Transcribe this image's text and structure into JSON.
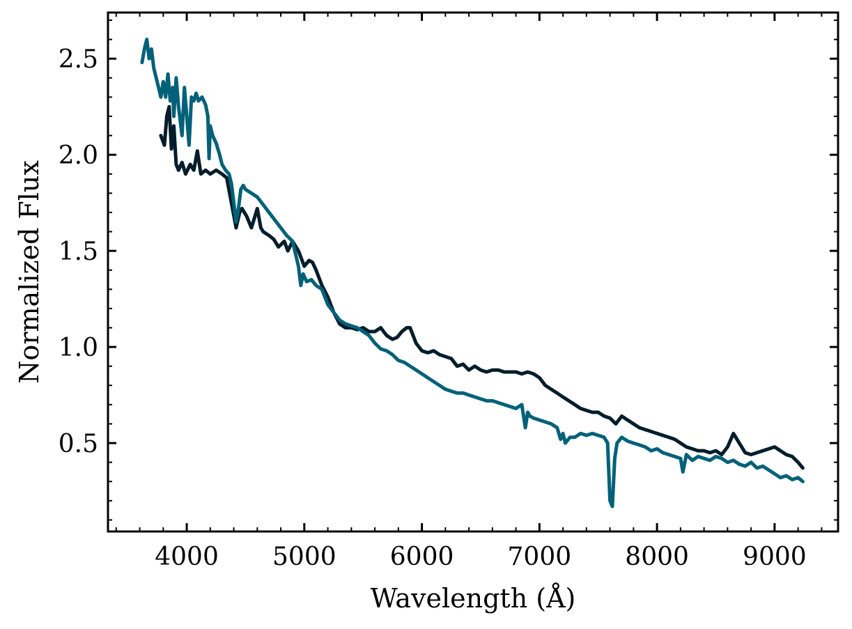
{
  "chart_data": {
    "type": "line",
    "title": "",
    "xlabel": "Wavelength (Å)",
    "ylabel": "Normalized Flux",
    "xlim": [
      3330,
      9540
    ],
    "ylim": [
      0.04,
      2.74
    ],
    "xticks": [
      4000,
      5000,
      6000,
      7000,
      8000,
      9000
    ],
    "xtick_labels": [
      "4000",
      "5000",
      "6000",
      "7000",
      "8000",
      "9000"
    ],
    "yticks": [
      0.5,
      1.0,
      1.5,
      2.0,
      2.5
    ],
    "ytick_labels": [
      "0.5",
      "1.0",
      "1.5",
      "2.0",
      "2.5"
    ],
    "x_minor_step": 200,
    "y_minor_step": 0.1,
    "grid": false,
    "legend": "none",
    "series": [
      {
        "color": "#031d2a",
        "x": [
          3780,
          3810,
          3830,
          3850,
          3870,
          3890,
          3910,
          3930,
          3960,
          3990,
          4030,
          4060,
          4090,
          4120,
          4160,
          4200,
          4250,
          4300,
          4340,
          4380,
          4420,
          4450,
          4470,
          4510,
          4550,
          4580,
          4600,
          4630,
          4650,
          4700,
          4740,
          4780,
          4830,
          4860,
          4900,
          4950,
          5000,
          5040,
          5070,
          5100,
          5150,
          5200,
          5250,
          5300,
          5350,
          5400,
          5450,
          5500,
          5550,
          5600,
          5650,
          5700,
          5750,
          5790,
          5830,
          5870,
          5900,
          5950,
          6000,
          6050,
          6100,
          6150,
          6200,
          6250,
          6300,
          6350,
          6400,
          6450,
          6500,
          6550,
          6600,
          6650,
          6700,
          6750,
          6800,
          6850,
          6900,
          6950,
          7000,
          7050,
          7100,
          7150,
          7200,
          7250,
          7300,
          7350,
          7400,
          7450,
          7500,
          7550,
          7600,
          7650,
          7700,
          7750,
          7800,
          7850,
          7900,
          7950,
          8000,
          8050,
          8100,
          8150,
          8200,
          8250,
          8300,
          8350,
          8400,
          8450,
          8500,
          8550,
          8600,
          8650,
          8700,
          8750,
          8800,
          8850,
          8900,
          8950,
          9000,
          9050,
          9100,
          9150,
          9200,
          9240
        ],
        "y": [
          2.1,
          2.05,
          2.2,
          2.25,
          2.03,
          2.15,
          1.95,
          1.92,
          1.96,
          1.9,
          1.95,
          1.92,
          2.02,
          1.9,
          1.92,
          1.9,
          1.92,
          1.9,
          1.88,
          1.75,
          1.62,
          1.7,
          1.72,
          1.68,
          1.62,
          1.68,
          1.72,
          1.62,
          1.6,
          1.58,
          1.56,
          1.52,
          1.55,
          1.5,
          1.55,
          1.5,
          1.42,
          1.45,
          1.44,
          1.4,
          1.32,
          1.26,
          1.18,
          1.12,
          1.1,
          1.1,
          1.09,
          1.1,
          1.08,
          1.08,
          1.1,
          1.06,
          1.04,
          1.05,
          1.08,
          1.1,
          1.1,
          1.02,
          0.98,
          0.97,
          0.98,
          0.96,
          0.95,
          0.94,
          0.9,
          0.91,
          0.88,
          0.9,
          0.88,
          0.87,
          0.88,
          0.88,
          0.87,
          0.87,
          0.87,
          0.86,
          0.87,
          0.86,
          0.84,
          0.8,
          0.78,
          0.76,
          0.74,
          0.72,
          0.7,
          0.68,
          0.67,
          0.66,
          0.66,
          0.64,
          0.63,
          0.6,
          0.64,
          0.62,
          0.6,
          0.58,
          0.57,
          0.56,
          0.55,
          0.54,
          0.53,
          0.52,
          0.5,
          0.48,
          0.47,
          0.46,
          0.46,
          0.45,
          0.46,
          0.44,
          0.48,
          0.55,
          0.5,
          0.45,
          0.44,
          0.45,
          0.46,
          0.47,
          0.48,
          0.46,
          0.44,
          0.43,
          0.4,
          0.37
        ]
      },
      {
        "color": "#006178",
        "x": [
          3620,
          3640,
          3660,
          3680,
          3700,
          3720,
          3740,
          3760,
          3780,
          3800,
          3820,
          3840,
          3860,
          3880,
          3890,
          3910,
          3930,
          3960,
          3980,
          4000,
          4020,
          4040,
          4060,
          4080,
          4100,
          4130,
          4160,
          4180,
          4190,
          4200,
          4220,
          4250,
          4280,
          4300,
          4330,
          4360,
          4380,
          4400,
          4420,
          4440,
          4460,
          4480,
          4500,
          4550,
          4600,
          4650,
          4700,
          4750,
          4800,
          4850,
          4900,
          4950,
          4970,
          4990,
          5020,
          5060,
          5100,
          5150,
          5200,
          5250,
          5300,
          5350,
          5400,
          5450,
          5500,
          5550,
          5600,
          5650,
          5700,
          5750,
          5800,
          5850,
          5900,
          5950,
          6000,
          6050,
          6100,
          6150,
          6200,
          6250,
          6300,
          6350,
          6400,
          6450,
          6500,
          6550,
          6600,
          6650,
          6700,
          6750,
          6800,
          6850,
          6880,
          6900,
          6920,
          6950,
          7000,
          7050,
          7100,
          7150,
          7180,
          7200,
          7220,
          7260,
          7300,
          7350,
          7400,
          7450,
          7500,
          7550,
          7580,
          7600,
          7620,
          7640,
          7660,
          7700,
          7750,
          7800,
          7850,
          7900,
          7950,
          8000,
          8050,
          8100,
          8150,
          8200,
          8220,
          8250,
          8300,
          8350,
          8400,
          8450,
          8500,
          8550,
          8600,
          8650,
          8700,
          8750,
          8800,
          8850,
          8900,
          8950,
          9000,
          9050,
          9100,
          9150,
          9200,
          9240
        ],
        "y": [
          2.48,
          2.55,
          2.6,
          2.5,
          2.55,
          2.45,
          2.4,
          2.35,
          2.3,
          2.38,
          2.3,
          2.42,
          2.28,
          2.35,
          2.2,
          2.4,
          2.25,
          2.1,
          2.35,
          2.2,
          2.05,
          2.3,
          2.28,
          2.32,
          2.28,
          2.3,
          2.26,
          2.2,
          1.98,
          2.15,
          2.1,
          2.06,
          2.0,
          1.95,
          1.92,
          1.9,
          1.85,
          1.75,
          1.65,
          1.72,
          1.82,
          1.84,
          1.82,
          1.8,
          1.78,
          1.74,
          1.7,
          1.66,
          1.62,
          1.58,
          1.55,
          1.42,
          1.32,
          1.38,
          1.34,
          1.35,
          1.32,
          1.3,
          1.22,
          1.18,
          1.14,
          1.12,
          1.11,
          1.1,
          1.08,
          1.06,
          1.02,
          0.99,
          0.98,
          0.96,
          0.93,
          0.92,
          0.9,
          0.88,
          0.86,
          0.84,
          0.82,
          0.8,
          0.78,
          0.77,
          0.76,
          0.76,
          0.75,
          0.74,
          0.73,
          0.72,
          0.72,
          0.71,
          0.7,
          0.69,
          0.68,
          0.7,
          0.58,
          0.66,
          0.64,
          0.63,
          0.62,
          0.61,
          0.6,
          0.58,
          0.52,
          0.55,
          0.5,
          0.53,
          0.53,
          0.55,
          0.54,
          0.55,
          0.54,
          0.53,
          0.5,
          0.2,
          0.17,
          0.42,
          0.5,
          0.53,
          0.51,
          0.5,
          0.49,
          0.48,
          0.46,
          0.47,
          0.45,
          0.44,
          0.43,
          0.42,
          0.35,
          0.44,
          0.41,
          0.43,
          0.42,
          0.41,
          0.43,
          0.42,
          0.4,
          0.41,
          0.39,
          0.38,
          0.4,
          0.37,
          0.38,
          0.36,
          0.34,
          0.32,
          0.33,
          0.31,
          0.32,
          0.3
        ]
      }
    ]
  }
}
